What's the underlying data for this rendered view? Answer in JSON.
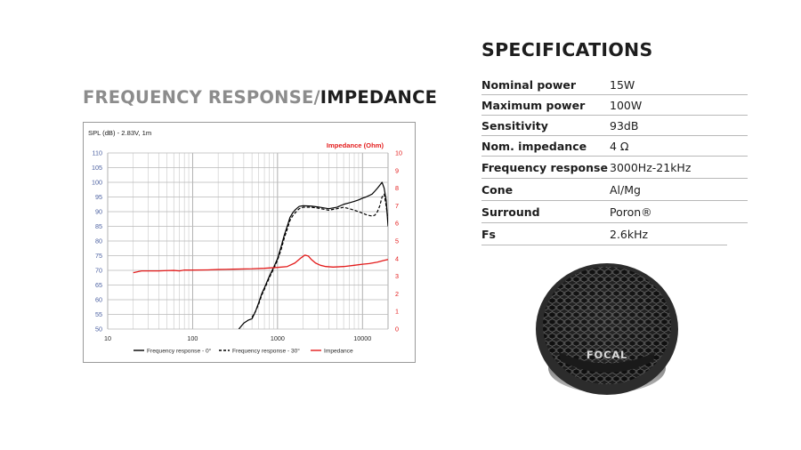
{
  "left_title": {
    "part1": "FREQUENCY RESPONSE/",
    "part2": "IMPEDANCE"
  },
  "specs": {
    "title": "SPECIFICATIONS",
    "rows": [
      {
        "label": "Nominal power",
        "value": "15W"
      },
      {
        "label": "Maximum power",
        "value": "100W"
      },
      {
        "label": "Sensitivity",
        "value": "93dB"
      },
      {
        "label": "Nom. impedance",
        "value": "4 Ω"
      },
      {
        "label": "Frequency response",
        "value": "3000Hz-21kHz"
      },
      {
        "label": "Cone",
        "value": "Al/Mg"
      },
      {
        "label": "Surround",
        "value": "Poron®"
      },
      {
        "label": "Fs",
        "value": "2.6kHz"
      }
    ]
  },
  "product": {
    "brand": "FOCAL"
  },
  "colors": {
    "spl": "#000000",
    "impedance": "#e31b1b",
    "grid": "#c8c8c8",
    "left_axis_labels": "#4a5fa0",
    "right_axis_labels": "#e31b1b"
  },
  "chart_data": {
    "type": "line",
    "title": "",
    "ylabel": "SPL (dB) - 2.83V, 1m",
    "y2label": "Impedance (Ohm)",
    "x_scale": "log",
    "xlim": [
      10,
      20000
    ],
    "ylim": [
      50,
      110
    ],
    "y2lim": [
      0,
      10
    ],
    "x_ticks": [
      "10",
      "100",
      "1000",
      "10000"
    ],
    "y_ticks": [
      "50",
      "55",
      "60",
      "65",
      "70",
      "75",
      "80",
      "85",
      "90",
      "95",
      "100",
      "105",
      "110"
    ],
    "y2_ticks": [
      "0",
      "1",
      "2",
      "3",
      "4",
      "5",
      "6",
      "7",
      "8",
      "9",
      "10"
    ],
    "grid": true,
    "legend_position": "bottom",
    "series": [
      {
        "name": "Frequency response - 0°",
        "axis": "left",
        "style": "solid",
        "x": [
          350,
          400,
          450,
          500,
          550,
          600,
          650,
          700,
          800,
          900,
          1000,
          1100,
          1200,
          1300,
          1400,
          1500,
          1600,
          1700,
          1800,
          2000,
          2500,
          3000,
          4000,
          5000,
          6000,
          7000,
          8000,
          9000,
          10000,
          11000,
          12000,
          13000,
          14000,
          15000,
          16000,
          17000,
          18000,
          19000,
          20000
        ],
        "values": [
          50.0,
          52.0,
          53.0,
          53.5,
          56.0,
          59.0,
          62.0,
          64.0,
          68.0,
          71.0,
          74.0,
          78.0,
          82.0,
          85.0,
          88.0,
          89.5,
          90.5,
          91.2,
          91.8,
          92.0,
          91.9,
          91.6,
          91.0,
          91.5,
          92.5,
          93.0,
          93.5,
          94.0,
          94.6,
          95.0,
          95.5,
          96.0,
          97.0,
          98.0,
          99.0,
          100.0,
          98.0,
          94.0,
          85.0
        ]
      },
      {
        "name": "Frequency response - 30°",
        "axis": "left",
        "style": "dashed",
        "x": [
          500,
          550,
          600,
          650,
          700,
          800,
          900,
          1000,
          1100,
          1200,
          1300,
          1400,
          1500,
          1600,
          1700,
          1800,
          2000,
          2500,
          3000,
          4000,
          5000,
          6000,
          7000,
          8000,
          9000,
          10000,
          11000,
          12000,
          13000,
          14000,
          15000,
          16000,
          17000,
          18000,
          19000,
          20000
        ],
        "values": [
          54.0,
          56.0,
          58.5,
          61.5,
          63.5,
          67.5,
          70.5,
          73.5,
          77.0,
          81.0,
          84.0,
          87.0,
          88.5,
          89.5,
          90.3,
          91.0,
          91.5,
          91.5,
          91.2,
          90.5,
          91.0,
          91.5,
          91.0,
          90.5,
          90.0,
          89.5,
          89.0,
          88.7,
          88.5,
          88.8,
          90.0,
          92.0,
          95.0,
          96.0,
          92.0,
          87.0
        ]
      },
      {
        "name": "Impedance",
        "axis": "right",
        "style": "solid",
        "x": [
          20,
          25,
          30,
          40,
          50,
          60,
          70,
          80,
          100,
          150,
          200,
          300,
          500,
          700,
          1000,
          1300,
          1600,
          1900,
          2100,
          2300,
          2500,
          2800,
          3200,
          3700,
          4500,
          6000,
          8000,
          10000,
          12000,
          15000,
          18000,
          20000
        ],
        "values": [
          3.2,
          3.3,
          3.3,
          3.3,
          3.32,
          3.33,
          3.3,
          3.35,
          3.35,
          3.36,
          3.38,
          3.4,
          3.42,
          3.45,
          3.5,
          3.55,
          3.75,
          4.05,
          4.2,
          4.15,
          3.95,
          3.75,
          3.62,
          3.55,
          3.52,
          3.55,
          3.62,
          3.68,
          3.72,
          3.8,
          3.9,
          3.95
        ]
      }
    ]
  }
}
